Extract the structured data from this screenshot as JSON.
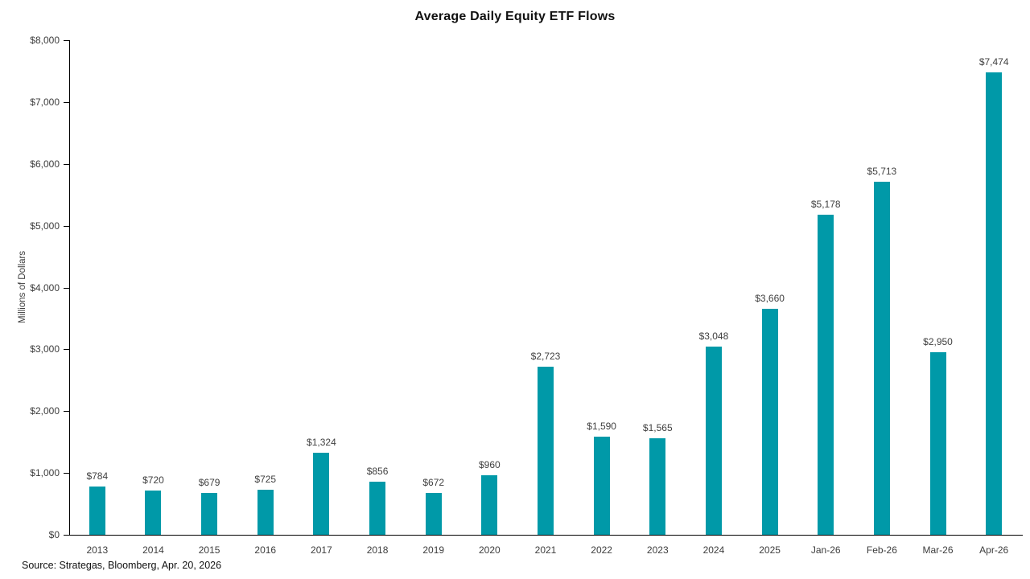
{
  "chart_data": {
    "type": "bar",
    "title": "Average Daily Equity ETF Flows",
    "xlabel": "",
    "ylabel": "Millions of Dollars",
    "source": "Source: Strategas, Bloomberg, Apr. 20, 2026",
    "categories": [
      "2013",
      "2014",
      "2015",
      "2016",
      "2017",
      "2018",
      "2019",
      "2020",
      "2021",
      "2022",
      "2023",
      "2024",
      "2025",
      "Jan-26",
      "Feb-26",
      "Mar-26",
      "Apr-26"
    ],
    "values": [
      784,
      720,
      679,
      725,
      1324,
      856,
      672,
      960,
      2723,
      1590,
      1565,
      3048,
      3660,
      5178,
      5713,
      2950,
      7474
    ],
    "value_labels": [
      "$784",
      "$720",
      "$679",
      "$725",
      "$1,324",
      "$856",
      "$672",
      "$960",
      "$2,723",
      "$1,590",
      "$1,565",
      "$3,048",
      "$3,660",
      "$5,178",
      "$5,713",
      "$2,950",
      "$7,474"
    ],
    "ylim": [
      0,
      8000
    ],
    "ytick_step": 1000,
    "ytick_labels": [
      "$0",
      "$1,000",
      "$2,000",
      "$3,000",
      "$4,000",
      "$5,000",
      "$6,000",
      "$7,000",
      "$8,000"
    ],
    "grid": false,
    "legend": "none",
    "bar_color": "#0099A8",
    "axis_color": "#000000",
    "label_color": "#404040",
    "title_color": "#111111"
  }
}
